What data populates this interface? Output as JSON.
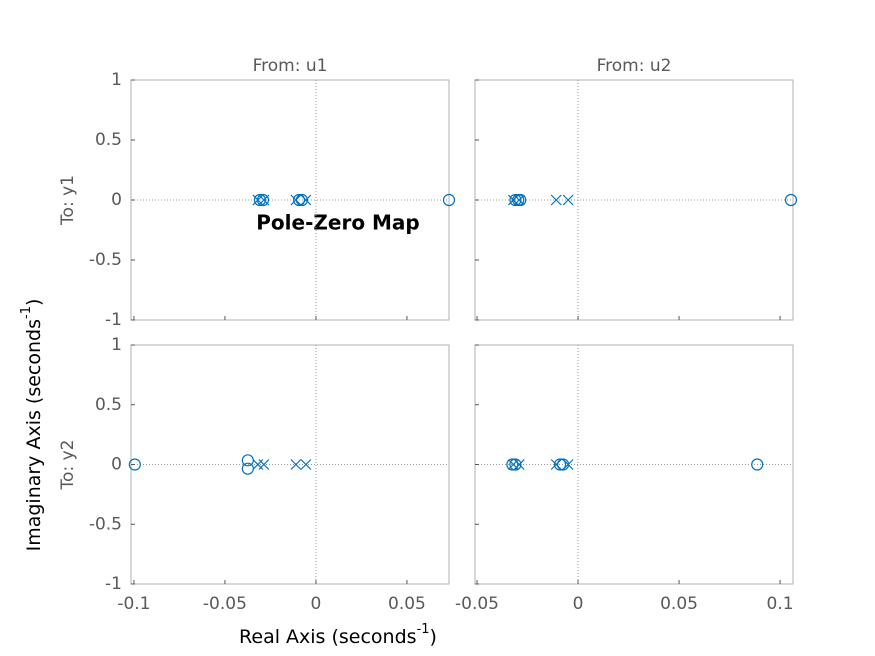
{
  "title": "Pole-Zero Map",
  "xlabel": [
    "Real Axis (seconds",
    "-1",
    ")"
  ],
  "ylabel": [
    "Imaginary Axis (seconds",
    "-1",
    ")"
  ],
  "column_labels": [
    "From: u1",
    "From: u2"
  ],
  "row_labels": [
    "To: y1",
    "To: y2"
  ],
  "chart_data": [
    {
      "type": "scatter",
      "xlim": [
        -0.1016,
        0.0731
      ],
      "ylim": [
        -1,
        1
      ],
      "xticks": [
        -0.1,
        -0.05,
        0,
        0.05
      ],
      "yticks": [
        -1,
        -0.5,
        0,
        0.5,
        1
      ],
      "series": [
        {
          "marker": "x",
          "color": "#0072bd",
          "x": [
            -0.0319,
            -0.0286,
            -0.011,
            -0.0055
          ],
          "y": [
            0,
            0,
            0,
            0
          ]
        },
        {
          "marker": "o",
          "color": "#0072bd",
          "x": [
            -0.0308,
            -0.0291,
            -0.0093,
            -0.0077,
            0.0731
          ],
          "y": [
            0,
            0,
            0,
            0,
            0
          ]
        }
      ]
    },
    {
      "type": "scatter",
      "xlim": [
        -0.051,
        0.1064
      ],
      "ylim": [
        -1,
        1
      ],
      "xticks": [
        -0.05,
        0,
        0.05,
        0.1
      ],
      "yticks": [
        -1,
        -0.5,
        0,
        0.5,
        1
      ],
      "series": [
        {
          "marker": "x",
          "color": "#0072bd",
          "x": [
            -0.032,
            -0.0291,
            -0.0108,
            -0.0049
          ],
          "y": [
            0,
            0,
            0,
            0
          ]
        },
        {
          "marker": "o",
          "color": "#0072bd",
          "x": [
            -0.031,
            -0.0296,
            -0.0286,
            0.1054
          ],
          "y": [
            0,
            0,
            0,
            0
          ]
        }
      ]
    },
    {
      "type": "scatter",
      "xlim": [
        -0.1016,
        0.0731
      ],
      "ylim": [
        -1,
        1
      ],
      "xticks": [
        -0.1,
        -0.05,
        0,
        0.05
      ],
      "yticks": [
        -1,
        -0.5,
        0,
        0.5,
        1
      ],
      "series": [
        {
          "marker": "x",
          "color": "#0072bd",
          "x": [
            -0.0319,
            -0.0286,
            -0.011,
            -0.0055
          ],
          "y": [
            0,
            0,
            0,
            0
          ]
        },
        {
          "marker": "o",
          "color": "#0072bd",
          "x": [
            -0.0995,
            -0.0374,
            -0.0374
          ],
          "y": [
            0,
            0.035,
            -0.035
          ]
        }
      ]
    },
    {
      "type": "scatter",
      "xlim": [
        -0.051,
        0.1064
      ],
      "ylim": [
        -1,
        1
      ],
      "xticks": [
        -0.05,
        0,
        0.05,
        0.1
      ],
      "yticks": [
        -1,
        -0.5,
        0,
        0.5,
        1
      ],
      "series": [
        {
          "marker": "x",
          "color": "#0072bd",
          "x": [
            -0.032,
            -0.0291,
            -0.0108,
            -0.0049
          ],
          "y": [
            0,
            0,
            0,
            0
          ]
        },
        {
          "marker": "o",
          "color": "#0072bd",
          "x": [
            -0.0325,
            -0.031,
            -0.0089,
            -0.0074,
            0.0887
          ],
          "y": [
            0,
            0,
            0,
            0,
            0
          ]
        }
      ]
    }
  ]
}
